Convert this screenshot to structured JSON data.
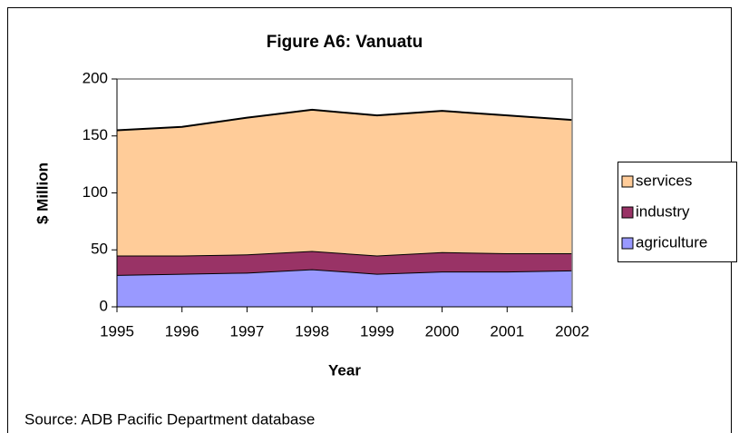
{
  "chart_data": {
    "type": "stacked_area",
    "title": "Figure A6: Vanuatu",
    "x_label": "Year",
    "y_label": "$ Million",
    "x": [
      1995,
      1996,
      1997,
      1998,
      1999,
      2000,
      2001,
      2002
    ],
    "xlim": [
      1995,
      2002
    ],
    "xticks": [
      1995,
      1996,
      1997,
      1998,
      1999,
      2000,
      2001,
      2002
    ],
    "ylim": [
      0,
      200
    ],
    "yticks": [
      0,
      50,
      100,
      150,
      200
    ],
    "series": [
      {
        "name": "agriculture",
        "color": "#9999ff",
        "values": [
          28,
          29,
          30,
          33,
          29,
          31,
          31,
          32
        ]
      },
      {
        "name": "industry",
        "color": "#993366",
        "values": [
          17,
          16,
          16,
          16,
          16,
          17,
          16,
          15
        ]
      },
      {
        "name": "services",
        "color": "#ffcc99",
        "values": [
          110,
          113,
          120,
          124,
          123,
          124,
          121,
          117
        ]
      }
    ],
    "source": "Source: ADB Pacific Department database"
  }
}
